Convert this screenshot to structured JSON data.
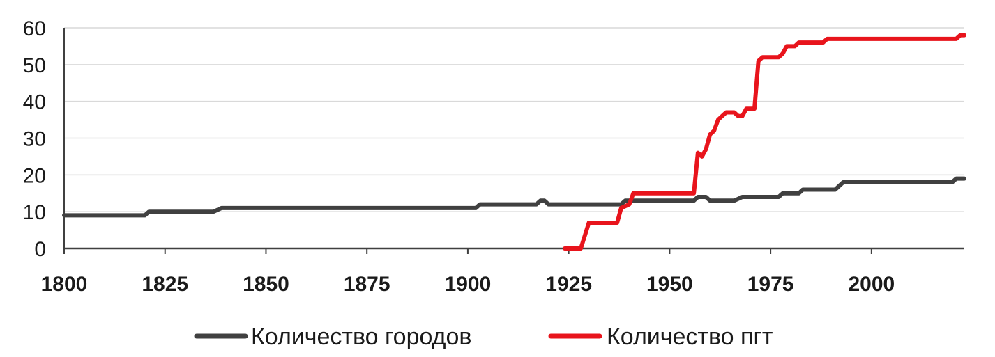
{
  "chart_data": {
    "type": "line",
    "title": "",
    "xlabel": "",
    "ylabel": "",
    "xlim": [
      1800,
      2023
    ],
    "ylim": [
      0,
      60
    ],
    "x_ticks": [
      "1800",
      "1825",
      "1850",
      "1875",
      "1900",
      "1925",
      "1950",
      "1975",
      "2000"
    ],
    "y_ticks": [
      "0",
      "10",
      "20",
      "30",
      "40",
      "50",
      "60"
    ],
    "grid": "horizontal",
    "legend_position": "bottom",
    "series": [
      {
        "name": "Количество городов",
        "color": "#404040",
        "points": [
          [
            1800,
            9
          ],
          [
            1820,
            9
          ],
          [
            1821,
            10
          ],
          [
            1837,
            10
          ],
          [
            1839,
            11
          ],
          [
            1902,
            11
          ],
          [
            1903,
            12
          ],
          [
            1917,
            12
          ],
          [
            1918,
            13
          ],
          [
            1919,
            13
          ],
          [
            1920,
            12
          ],
          [
            1938,
            12
          ],
          [
            1939,
            13
          ],
          [
            1956,
            13
          ],
          [
            1957,
            14
          ],
          [
            1959,
            14
          ],
          [
            1960,
            13
          ],
          [
            1966,
            13
          ],
          [
            1968,
            14
          ],
          [
            1977,
            14
          ],
          [
            1978,
            15
          ],
          [
            1982,
            15
          ],
          [
            1983,
            16
          ],
          [
            1991,
            16
          ],
          [
            1993,
            18
          ],
          [
            2020,
            18
          ],
          [
            2021,
            19
          ],
          [
            2023,
            19
          ]
        ]
      },
      {
        "name": "Количество пгт",
        "color": "#e8141c",
        "points": [
          [
            1924,
            0
          ],
          [
            1928,
            0
          ],
          [
            1930,
            7
          ],
          [
            1937,
            7
          ],
          [
            1938,
            11
          ],
          [
            1940,
            12
          ],
          [
            1941,
            15
          ],
          [
            1956,
            15
          ],
          [
            1957,
            26
          ],
          [
            1958,
            25
          ],
          [
            1959,
            27
          ],
          [
            1960,
            31
          ],
          [
            1961,
            32
          ],
          [
            1962,
            35
          ],
          [
            1963,
            36
          ],
          [
            1964,
            37
          ],
          [
            1966,
            37
          ],
          [
            1967,
            36
          ],
          [
            1968,
            36
          ],
          [
            1969,
            38
          ],
          [
            1971,
            38
          ],
          [
            1972,
            51
          ],
          [
            1973,
            52
          ],
          [
            1977,
            52
          ],
          [
            1978,
            53
          ],
          [
            1979,
            55
          ],
          [
            1981,
            55
          ],
          [
            1982,
            56
          ],
          [
            1988,
            56
          ],
          [
            1989,
            57
          ],
          [
            2021,
            57
          ],
          [
            2022,
            58
          ],
          [
            2023,
            58
          ]
        ]
      }
    ]
  }
}
